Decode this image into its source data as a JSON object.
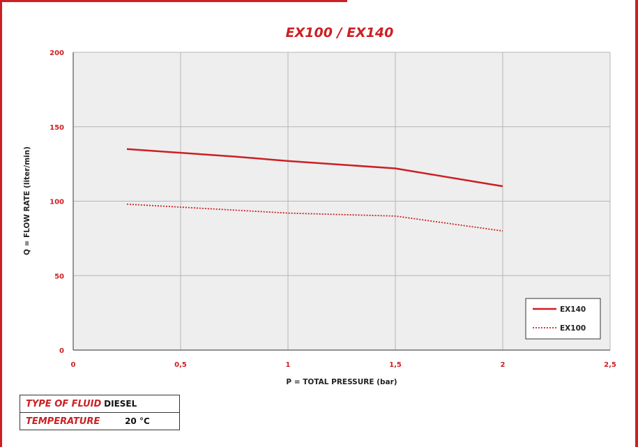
{
  "colors": {
    "accent": "#cc1f23",
    "grid": "#b5b5b5",
    "plot_bg": "#eeeeee"
  },
  "chart_data": {
    "type": "line",
    "title": "EX100 / EX140",
    "xlabel": "P = TOTAL PRESSURE (bar)",
    "ylabel": "Q = FLOW RATE (liter/min)",
    "xlim": [
      0,
      2.5
    ],
    "ylim": [
      0,
      200
    ],
    "x_ticks": [
      "0",
      "0,5",
      "1",
      "1,5",
      "2",
      "2,5"
    ],
    "y_ticks": [
      "0",
      "50",
      "100",
      "150",
      "200"
    ],
    "grid": true,
    "legend_position": "bottom-right",
    "series": [
      {
        "name": "EX140",
        "style": "solid",
        "x": [
          0.25,
          0.75,
          1,
          1.5,
          2
        ],
        "y": [
          135,
          130,
          127,
          122,
          110
        ]
      },
      {
        "name": "EX100",
        "style": "dotted",
        "x": [
          0.25,
          0.5,
          1,
          1.5,
          2
        ],
        "y": [
          98,
          96,
          92,
          90,
          80
        ]
      }
    ]
  },
  "info": [
    {
      "label": "TYPE OF FLUID",
      "value": "DIESEL"
    },
    {
      "label": "TEMPERATURE",
      "value": "20 °C"
    }
  ]
}
